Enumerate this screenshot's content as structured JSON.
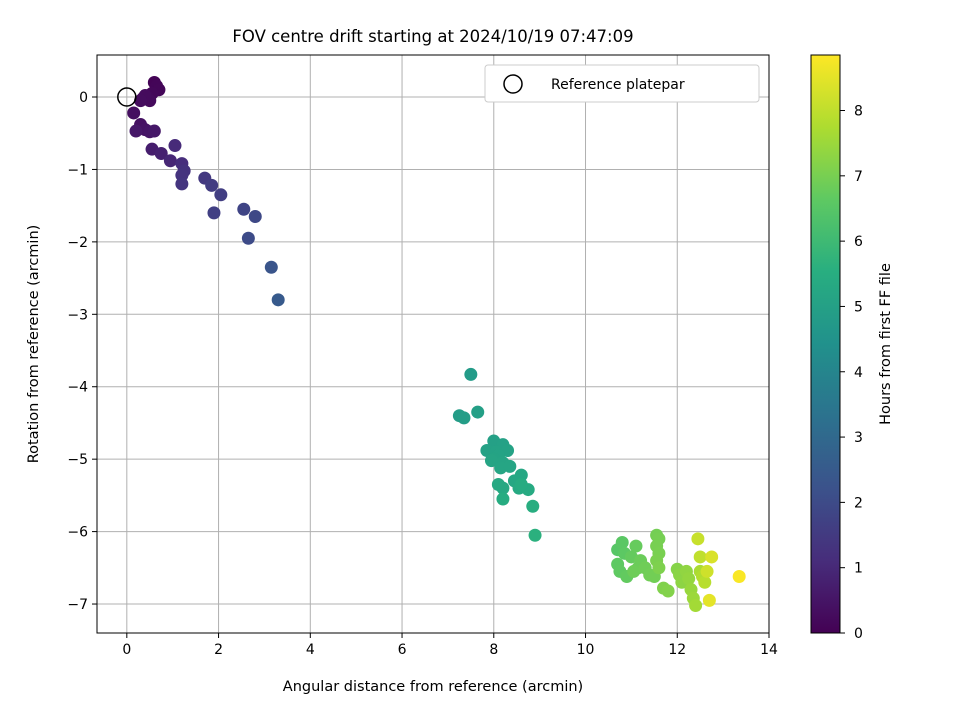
{
  "chart_data": {
    "type": "scatter",
    "title": "FOV centre drift starting at 2024/10/19 07:47:09",
    "xlabel": "Angular distance from reference (arcmin)",
    "ylabel": "Rotation from reference (arcmin)",
    "colorbar_label": "Hours from first FF file",
    "xlim": [
      -0.65,
      14
    ],
    "ylim": [
      -7.4,
      0.58
    ],
    "x_ticks": [
      0,
      2,
      4,
      6,
      8,
      10,
      12,
      14
    ],
    "y_ticks": [
      0,
      -1,
      -2,
      -3,
      -4,
      -5,
      -6,
      -7
    ],
    "x_tick_labels": [
      "0",
      "2",
      "4",
      "6",
      "8",
      "10",
      "12",
      "14"
    ],
    "y_tick_labels": [
      "0",
      "−1",
      "−2",
      "−3",
      "−4",
      "−5",
      "−6",
      "−7"
    ],
    "colorbar_ticks": [
      0,
      1,
      2,
      3,
      4,
      5,
      6,
      7,
      8
    ],
    "colorbar_tick_labels": [
      "0",
      "1",
      "2",
      "3",
      "4",
      "5",
      "6",
      "7",
      "8"
    ],
    "colorbar_range": [
      0,
      8.85
    ],
    "colormap": "viridis",
    "grid": true,
    "legend": {
      "position": "top-right",
      "entries": [
        "Reference platepar"
      ]
    },
    "reference": {
      "x": 0,
      "y": 0,
      "label": "Reference platepar"
    },
    "points": [
      {
        "x": 0.6,
        "y": 0.2,
        "t": 0.05
      },
      {
        "x": 0.65,
        "y": 0.15,
        "t": 0.1
      },
      {
        "x": 0.7,
        "y": 0.1,
        "t": 0.12
      },
      {
        "x": 0.55,
        "y": 0.05,
        "t": 0.15
      },
      {
        "x": 0.45,
        "y": 0.0,
        "t": 0.18
      },
      {
        "x": 0.35,
        "y": -0.02,
        "t": 0.2
      },
      {
        "x": 0.5,
        "y": -0.05,
        "t": 0.22
      },
      {
        "x": 0.4,
        "y": 0.02,
        "t": 0.25
      },
      {
        "x": 0.3,
        "y": -0.05,
        "t": 0.28
      },
      {
        "x": 0.15,
        "y": -0.22,
        "t": 0.35
      },
      {
        "x": 0.3,
        "y": -0.38,
        "t": 0.4
      },
      {
        "x": 0.4,
        "y": -0.45,
        "t": 0.45
      },
      {
        "x": 0.5,
        "y": -0.48,
        "t": 0.5
      },
      {
        "x": 0.6,
        "y": -0.47,
        "t": 0.55
      },
      {
        "x": 0.2,
        "y": -0.47,
        "t": 0.58
      },
      {
        "x": 0.55,
        "y": -0.72,
        "t": 0.7
      },
      {
        "x": 0.75,
        "y": -0.78,
        "t": 0.8
      },
      {
        "x": 0.95,
        "y": -0.88,
        "t": 0.95
      },
      {
        "x": 1.05,
        "y": -0.67,
        "t": 1.05
      },
      {
        "x": 1.2,
        "y": -0.92,
        "t": 1.15
      },
      {
        "x": 1.25,
        "y": -1.02,
        "t": 1.25
      },
      {
        "x": 1.2,
        "y": -1.08,
        "t": 1.3
      },
      {
        "x": 1.2,
        "y": -1.2,
        "t": 1.35
      },
      {
        "x": 1.7,
        "y": -1.12,
        "t": 1.45
      },
      {
        "x": 1.85,
        "y": -1.22,
        "t": 1.55
      },
      {
        "x": 2.05,
        "y": -1.35,
        "t": 1.6
      },
      {
        "x": 1.9,
        "y": -1.6,
        "t": 1.65
      },
      {
        "x": 2.55,
        "y": -1.55,
        "t": 1.8
      },
      {
        "x": 2.8,
        "y": -1.65,
        "t": 1.9
      },
      {
        "x": 2.65,
        "y": -1.95,
        "t": 2.0
      },
      {
        "x": 3.15,
        "y": -2.35,
        "t": 2.3
      },
      {
        "x": 3.3,
        "y": -2.8,
        "t": 2.5
      },
      {
        "x": 7.5,
        "y": -3.83,
        "t": 4.8
      },
      {
        "x": 7.25,
        "y": -4.4,
        "t": 4.85
      },
      {
        "x": 7.35,
        "y": -4.43,
        "t": 4.9
      },
      {
        "x": 7.65,
        "y": -4.35,
        "t": 4.95
      },
      {
        "x": 8.0,
        "y": -4.75,
        "t": 5.0
      },
      {
        "x": 8.2,
        "y": -4.8,
        "t": 5.02
      },
      {
        "x": 7.85,
        "y": -4.88,
        "t": 5.05
      },
      {
        "x": 8.05,
        "y": -4.9,
        "t": 5.07
      },
      {
        "x": 8.3,
        "y": -4.88,
        "t": 5.08
      },
      {
        "x": 8.1,
        "y": -4.95,
        "t": 5.1
      },
      {
        "x": 8.0,
        "y": -5.0,
        "t": 5.12
      },
      {
        "x": 8.2,
        "y": -5.05,
        "t": 5.14
      },
      {
        "x": 7.95,
        "y": -5.02,
        "t": 5.15
      },
      {
        "x": 8.15,
        "y": -5.12,
        "t": 5.17
      },
      {
        "x": 8.35,
        "y": -5.1,
        "t": 5.2
      },
      {
        "x": 8.6,
        "y": -5.22,
        "t": 5.25
      },
      {
        "x": 8.45,
        "y": -5.3,
        "t": 5.28
      },
      {
        "x": 8.1,
        "y": -5.35,
        "t": 5.3
      },
      {
        "x": 8.2,
        "y": -5.4,
        "t": 5.32
      },
      {
        "x": 8.55,
        "y": -5.4,
        "t": 5.35
      },
      {
        "x": 8.75,
        "y": -5.42,
        "t": 5.38
      },
      {
        "x": 8.6,
        "y": -5.35,
        "t": 5.4
      },
      {
        "x": 8.2,
        "y": -5.55,
        "t": 5.45
      },
      {
        "x": 8.85,
        "y": -5.65,
        "t": 5.5
      },
      {
        "x": 8.9,
        "y": -6.05,
        "t": 5.6
      },
      {
        "x": 10.7,
        "y": -6.25,
        "t": 6.5
      },
      {
        "x": 10.8,
        "y": -6.15,
        "t": 6.55
      },
      {
        "x": 10.85,
        "y": -6.3,
        "t": 6.6
      },
      {
        "x": 10.7,
        "y": -6.45,
        "t": 6.62
      },
      {
        "x": 10.75,
        "y": -6.55,
        "t": 6.65
      },
      {
        "x": 10.9,
        "y": -6.62,
        "t": 6.7
      },
      {
        "x": 11.0,
        "y": -6.35,
        "t": 6.72
      },
      {
        "x": 11.1,
        "y": -6.2,
        "t": 6.75
      },
      {
        "x": 11.15,
        "y": -6.5,
        "t": 6.8
      },
      {
        "x": 11.2,
        "y": -6.4,
        "t": 6.82
      },
      {
        "x": 11.05,
        "y": -6.55,
        "t": 6.85
      },
      {
        "x": 11.3,
        "y": -6.5,
        "t": 6.88
      },
      {
        "x": 11.4,
        "y": -6.6,
        "t": 6.9
      },
      {
        "x": 11.5,
        "y": -6.62,
        "t": 6.92
      },
      {
        "x": 11.55,
        "y": -6.05,
        "t": 6.95
      },
      {
        "x": 11.6,
        "y": -6.1,
        "t": 6.97
      },
      {
        "x": 11.55,
        "y": -6.2,
        "t": 7.0
      },
      {
        "x": 11.6,
        "y": -6.3,
        "t": 7.02
      },
      {
        "x": 11.55,
        "y": -6.4,
        "t": 7.05
      },
      {
        "x": 11.6,
        "y": -6.5,
        "t": 7.08
      },
      {
        "x": 11.7,
        "y": -6.78,
        "t": 7.12
      },
      {
        "x": 11.8,
        "y": -6.82,
        "t": 7.15
      },
      {
        "x": 12.0,
        "y": -6.52,
        "t": 7.2
      },
      {
        "x": 12.05,
        "y": -6.6,
        "t": 7.25
      },
      {
        "x": 12.1,
        "y": -6.7,
        "t": 7.3
      },
      {
        "x": 12.2,
        "y": -6.55,
        "t": 7.35
      },
      {
        "x": 12.25,
        "y": -6.65,
        "t": 7.4
      },
      {
        "x": 12.3,
        "y": -6.8,
        "t": 7.45
      },
      {
        "x": 12.35,
        "y": -6.92,
        "t": 7.5
      },
      {
        "x": 12.4,
        "y": -7.02,
        "t": 7.6
      },
      {
        "x": 12.5,
        "y": -6.55,
        "t": 7.7
      },
      {
        "x": 12.55,
        "y": -6.62,
        "t": 7.8
      },
      {
        "x": 12.6,
        "y": -6.7,
        "t": 7.9
      },
      {
        "x": 12.5,
        "y": -6.35,
        "t": 8.0
      },
      {
        "x": 12.45,
        "y": -6.1,
        "t": 8.1
      },
      {
        "x": 12.65,
        "y": -6.55,
        "t": 8.2
      },
      {
        "x": 12.75,
        "y": -6.35,
        "t": 8.35
      },
      {
        "x": 12.7,
        "y": -6.95,
        "t": 8.5
      },
      {
        "x": 13.35,
        "y": -6.62,
        "t": 8.8
      }
    ]
  }
}
